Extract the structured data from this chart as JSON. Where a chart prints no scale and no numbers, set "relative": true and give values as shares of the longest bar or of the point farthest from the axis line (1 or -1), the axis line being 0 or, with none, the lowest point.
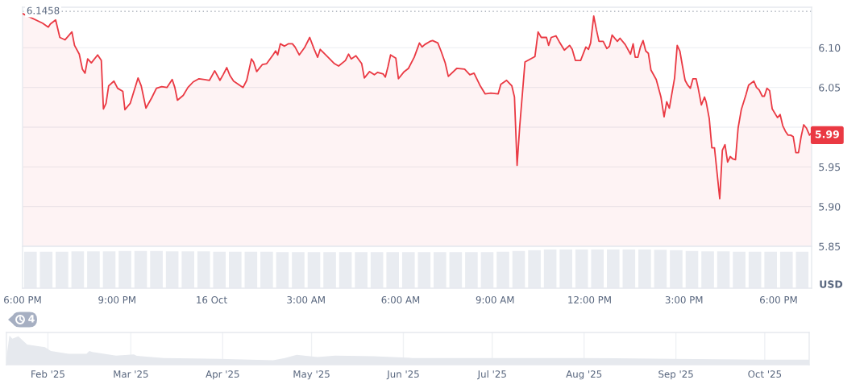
{
  "chart_data": [
    {
      "type": "area",
      "x": [
        "2025-10-15T18:00",
        "2025-10-15T18:38",
        "2025-10-15T18:49",
        "2025-10-15T18:53",
        "2025-10-15T19:03",
        "2025-10-15T19:11",
        "2025-10-15T19:21",
        "2025-10-15T19:34",
        "2025-10-15T19:39",
        "2025-10-15T19:48",
        "2025-10-15T19:54",
        "2025-10-15T19:59",
        "2025-10-15T20:04",
        "2025-10-15T20:11",
        "2025-10-15T20:23",
        "2025-10-15T20:30",
        "2025-10-15T20:34",
        "2025-10-15T20:39",
        "2025-10-15T20:44",
        "2025-10-15T20:54",
        "2025-10-15T21:01",
        "2025-10-15T21:11",
        "2025-10-15T21:15",
        "2025-10-15T21:25",
        "2025-10-15T21:40",
        "2025-10-15T21:46",
        "2025-10-15T21:55",
        "2025-10-15T22:06",
        "2025-10-15T22:15",
        "2025-10-15T22:25",
        "2025-10-15T22:35",
        "2025-10-15T22:45",
        "2025-10-15T22:50",
        "2025-10-15T22:55",
        "2025-10-15T23:06",
        "2025-10-15T23:15",
        "2025-10-15T23:25",
        "2025-10-15T23:36",
        "2025-10-15T23:56",
        "2025-10-16T00:06",
        "2025-10-16T00:16",
        "2025-10-16T00:22",
        "2025-10-16T00:29",
        "2025-10-16T00:35",
        "2025-10-16T00:42",
        "2025-10-16T01:00",
        "2025-10-16T01:07",
        "2025-10-16T01:16",
        "2025-10-16T01:20",
        "2025-10-16T01:26",
        "2025-10-16T01:37",
        "2025-10-16T01:45",
        "2025-10-16T01:57",
        "2025-10-16T02:02",
        "2025-10-16T02:06",
        "2025-10-16T02:11",
        "2025-10-16T02:19",
        "2025-10-16T02:26",
        "2025-10-16T02:34",
        "2025-10-16T02:39",
        "2025-10-16T02:47",
        "2025-10-16T02:57",
        "2025-10-16T03:07",
        "2025-10-16T03:15",
        "2025-10-16T03:22",
        "2025-10-16T03:27",
        "2025-10-16T03:42",
        "2025-10-16T03:54",
        "2025-10-16T04:02",
        "2025-10-16T04:15",
        "2025-10-16T04:21",
        "2025-10-16T04:26",
        "2025-10-16T04:35",
        "2025-10-16T04:46",
        "2025-10-16T04:51",
        "2025-10-16T05:01",
        "2025-10-16T05:10",
        "2025-10-16T05:16",
        "2025-10-16T05:27",
        "2025-10-16T05:31",
        "2025-10-16T05:36",
        "2025-10-16T05:41",
        "2025-10-16T05:51",
        "2025-10-16T05:56",
        "2025-10-16T06:07",
        "2025-10-16T06:15",
        "2025-10-16T06:26",
        "2025-10-16T06:36",
        "2025-10-16T06:41",
        "2025-10-16T06:46",
        "2025-10-16T06:56",
        "2025-10-16T07:01",
        "2025-10-16T07:11",
        "2025-10-16T07:17",
        "2025-10-16T07:25",
        "2025-10-16T07:31",
        "2025-10-16T07:47",
        "2025-10-16T08:02",
        "2025-10-16T08:12",
        "2025-10-16T08:20",
        "2025-10-16T08:31",
        "2025-10-16T08:41",
        "2025-10-16T08:52",
        "2025-10-16T09:06",
        "2025-10-16T09:11",
        "2025-10-16T09:22",
        "2025-10-16T09:32",
        "2025-10-16T09:37",
        "2025-10-16T09:42",
        "2025-10-16T09:47",
        "2025-10-16T09:57",
        "2025-10-16T10:16",
        "2025-10-16T10:22",
        "2025-10-16T10:28",
        "2025-10-16T10:38",
        "2025-10-16T10:42",
        "2025-10-16T10:47",
        "2025-10-16T10:56",
        "2025-10-16T11:02",
        "2025-10-16T11:12",
        "2025-10-16T11:22",
        "2025-10-16T11:27",
        "2025-10-16T11:33",
        "2025-10-16T11:43",
        "2025-10-16T11:53",
        "2025-10-16T11:58",
        "2025-10-16T12:02",
        "2025-10-16T12:08",
        "2025-10-16T12:13",
        "2025-10-16T12:18",
        "2025-10-16T12:26",
        "2025-10-16T12:33",
        "2025-10-16T12:38",
        "2025-10-16T12:43",
        "2025-10-16T12:53",
        "2025-10-16T12:58",
        "2025-10-16T13:08",
        "2025-10-16T13:18",
        "2025-10-16T13:23",
        "2025-10-16T13:27",
        "2025-10-16T13:32",
        "2025-10-16T13:37",
        "2025-10-16T13:42",
        "2025-10-16T13:47",
        "2025-10-16T13:52",
        "2025-10-16T13:57",
        "2025-10-16T14:07",
        "2025-10-16T14:16",
        "2025-10-16T14:22",
        "2025-10-16T14:27",
        "2025-10-16T14:32",
        "2025-10-16T14:42",
        "2025-10-16T14:47",
        "2025-10-16T14:52",
        "2025-10-16T14:57",
        "2025-10-16T15:02",
        "2025-10-16T15:07",
        "2025-10-16T15:12",
        "2025-10-16T15:17",
        "2025-10-16T15:23",
        "2025-10-16T15:27",
        "2025-10-16T15:33",
        "2025-10-16T15:39",
        "2025-10-16T15:42",
        "2025-10-16T15:48",
        "2025-10-16T15:53",
        "2025-10-16T15:58",
        "2025-10-16T16:08",
        "2025-10-16T16:13",
        "2025-10-16T16:18",
        "2025-10-16T16:23",
        "2025-10-16T16:28",
        "2025-10-16T16:33",
        "2025-10-16T16:38",
        "2025-10-16T16:43",
        "2025-10-16T16:49",
        "2025-10-16T16:58",
        "2025-10-16T17:03",
        "2025-10-16T17:13",
        "2025-10-16T17:18",
        "2025-10-16T17:23",
        "2025-10-16T17:29",
        "2025-10-16T17:33",
        "2025-10-16T17:38",
        "2025-10-16T17:43",
        "2025-10-16T17:48",
        "2025-10-16T17:58",
        "2025-10-16T18:03",
        "2025-10-16T18:08",
        "2025-10-16T18:13",
        "2025-10-16T18:18",
        "2025-10-16T18:23",
        "2025-10-16T18:28",
        "2025-10-16T18:33",
        "2025-10-16T18:38",
        "2025-10-16T18:43",
        "2025-10-16T18:48",
        "2025-10-16T18:53",
        "2025-10-16T18:59",
        "2025-10-16T19:03"
      ],
      "series": [
        {
          "color": "#ea3943",
          "values": [
            6.143,
            6.131,
            6.126,
            6.13,
            6.135,
            6.113,
            6.11,
            6.12,
            6.103,
            6.092,
            6.073,
            6.068,
            6.086,
            6.081,
            6.091,
            6.084,
            6.023,
            6.03,
            6.052,
            6.058,
            6.049,
            6.045,
            6.022,
            6.03,
            6.062,
            6.052,
            6.024,
            6.037,
            6.049,
            6.051,
            6.05,
            6.06,
            6.05,
            6.034,
            6.04,
            6.05,
            6.057,
            6.061,
            6.059,
            6.071,
            6.059,
            6.066,
            6.075,
            6.065,
            6.058,
            6.05,
            6.059,
            6.086,
            6.082,
            6.07,
            6.079,
            6.08,
            6.091,
            6.096,
            6.091,
            6.105,
            6.102,
            6.105,
            6.105,
            6.101,
            6.091,
            6.1,
            6.113,
            6.099,
            6.088,
            6.098,
            6.088,
            6.08,
            6.077,
            6.084,
            6.092,
            6.086,
            6.09,
            6.08,
            6.062,
            6.07,
            6.066,
            6.069,
            6.067,
            6.063,
            6.076,
            6.091,
            6.087,
            6.061,
            6.07,
            6.074,
            6.088,
            6.106,
            6.101,
            6.104,
            6.108,
            6.109,
            6.106,
            6.096,
            6.081,
            6.064,
            6.074,
            6.073,
            6.066,
            6.068,
            6.053,
            6.042,
            6.043,
            6.042,
            6.054,
            6.059,
            6.052,
            6.038,
            5.952,
            6.001,
            6.082,
            6.089,
            6.12,
            6.113,
            6.113,
            6.103,
            6.113,
            6.115,
            6.108,
            6.097,
            6.103,
            6.098,
            6.084,
            6.084,
            6.101,
            6.098,
            6.106,
            6.14,
            6.123,
            6.108,
            6.108,
            6.099,
            6.102,
            6.116,
            6.108,
            6.112,
            6.104,
            6.092,
            6.105,
            6.088,
            6.088,
            6.101,
            6.109,
            6.096,
            6.093,
            6.072,
            6.06,
            6.038,
            6.013,
            6.032,
            6.024,
            6.062,
            6.103,
            6.096,
            6.077,
            6.059,
            6.053,
            6.049,
            6.061,
            6.061,
            6.049,
            6.028,
            6.038,
            6.032,
            6.011,
            5.974,
            5.974,
            5.91,
            5.971,
            5.978,
            5.956,
            5.963,
            5.96,
            5.959,
            5.999,
            6.022,
            6.041,
            6.053,
            6.058,
            6.05,
            6.047,
            6.039,
            6.039,
            6.049,
            6.046,
            6.023,
            6.012,
            6.016,
            6.002,
            5.995,
            5.99,
            5.99,
            5.988,
            5.968,
            5.968,
            5.988,
            6.003,
            5.999,
            5.99,
            5.993
          ]
        }
      ],
      "xlim": [
        "2025-10-15T18:00",
        "2025-10-16T19:03"
      ],
      "ylim": [
        5.85,
        6.151
      ],
      "yticks": [
        5.85,
        {
          "value": 5.9,
          "label": "5.90"
        },
        5.95,
        {
          "value": 6.0,
          "label": null
        },
        6.05,
        {
          "value": 6.1,
          "label": "6.10"
        }
      ],
      "ylabel": "USD",
      "grid": "y",
      "tick_labels": "y",
      "ref_lines": [
        {
          "axis": "y",
          "value": 6.1458,
          "label": "6.1458",
          "color": "#9aa1ad",
          "line_style": "dotted"
        }
      ],
      "annotations": [
        {
          "text": "5.99",
          "x": "2025-10-16T19:03",
          "y": 5.99
        }
      ]
    },
    {
      "type": "bar",
      "relative": true,
      "x": [
        "2025-10-15T18:15",
        "2025-10-15T18:45",
        "2025-10-15T19:15",
        "2025-10-15T19:45",
        "2025-10-15T20:15",
        "2025-10-15T20:45",
        "2025-10-15T21:15",
        "2025-10-15T21:45",
        "2025-10-15T22:15",
        "2025-10-15T22:45",
        "2025-10-15T23:15",
        "2025-10-15T23:45",
        "2025-10-16T00:15",
        "2025-10-16T00:45",
        "2025-10-16T01:15",
        "2025-10-16T01:45",
        "2025-10-16T02:15",
        "2025-10-16T02:45",
        "2025-10-16T03:15",
        "2025-10-16T03:45",
        "2025-10-16T04:15",
        "2025-10-16T04:45",
        "2025-10-16T05:15",
        "2025-10-16T05:45",
        "2025-10-16T06:15",
        "2025-10-16T06:45",
        "2025-10-16T07:15",
        "2025-10-16T07:45",
        "2025-10-16T08:15",
        "2025-10-16T08:45",
        "2025-10-16T09:15",
        "2025-10-16T09:45",
        "2025-10-16T10:15",
        "2025-10-16T10:45",
        "2025-10-16T11:15",
        "2025-10-16T11:45",
        "2025-10-16T12:15",
        "2025-10-16T12:45",
        "2025-10-16T13:15",
        "2025-10-16T13:45",
        "2025-10-16T14:15",
        "2025-10-16T14:45",
        "2025-10-16T15:15",
        "2025-10-16T15:45",
        "2025-10-16T16:15",
        "2025-10-16T16:45",
        "2025-10-16T17:15",
        "2025-10-16T17:45",
        "2025-10-16T18:15",
        "2025-10-16T18:45"
      ],
      "series": [
        {
          "color": "#e9ecf1",
          "values": [
            0.94,
            0.94,
            0.94,
            0.95,
            0.95,
            0.95,
            0.96,
            0.96,
            0.96,
            0.95,
            0.95,
            0.95,
            0.94,
            0.94,
            0.94,
            0.94,
            0.93,
            0.93,
            0.93,
            0.93,
            0.93,
            0.93,
            0.93,
            0.93,
            0.93,
            0.93,
            0.93,
            0.93,
            0.93,
            0.93,
            0.94,
            0.96,
            0.98,
            1.0,
            1.0,
            1.0,
            1.0,
            1.0,
            1.0,
            1.0,
            0.99,
            0.98,
            0.96,
            0.95,
            0.95,
            0.94,
            0.94,
            0.94,
            0.94,
            0.94
          ]
        }
      ],
      "xlim": [
        "2025-10-15T18:00",
        "2025-10-16T19:03"
      ],
      "xticks": [
        {
          "value": "2025-10-15T18:00",
          "label": "6:00 PM"
        },
        {
          "value": "2025-10-15T21:00",
          "label": "9:00 PM"
        },
        {
          "value": "2025-10-16T00:00",
          "label": "16 Oct"
        },
        {
          "value": "2025-10-16T03:00",
          "label": "3:00 AM"
        },
        {
          "value": "2025-10-16T06:00",
          "label": "6:00 AM"
        },
        {
          "value": "2025-10-16T09:00",
          "label": "9:00 AM"
        },
        {
          "value": "2025-10-16T12:00",
          "label": "12:00 PM"
        },
        {
          "value": "2025-10-16T15:00",
          "label": "3:00 PM"
        },
        {
          "value": "2025-10-16T18:00",
          "label": "6:00 PM"
        }
      ],
      "tick_labels": "x",
      "annotations": [
        "4"
      ]
    },
    {
      "type": "area",
      "relative": true,
      "x": [
        "2025-01-18",
        "2025-01-19",
        "2025-01-20",
        "2025-01-22",
        "2025-01-25",
        "2025-01-31",
        "2025-02-02",
        "2025-02-08",
        "2025-02-14",
        "2025-02-15",
        "2025-02-16",
        "2025-02-24",
        "2025-03-02",
        "2025-03-03",
        "2025-03-12",
        "2025-03-31",
        "2025-04-18",
        "2025-04-22",
        "2025-04-26",
        "2025-05-03",
        "2025-05-09",
        "2025-05-22",
        "2025-06-04",
        "2025-06-30",
        "2025-07-31",
        "2025-08-31",
        "2025-09-30",
        "2025-10-16"
      ],
      "series": [
        {
          "color": "#e6e9ee",
          "values": [
            0.23,
            1.0,
            0.89,
            0.97,
            0.69,
            0.6,
            0.47,
            0.37,
            0.37,
            0.47,
            0.43,
            0.31,
            0.35,
            0.3,
            0.23,
            0.2,
            0.15,
            0.23,
            0.34,
            0.26,
            0.31,
            0.29,
            0.23,
            0.23,
            0.23,
            0.2,
            0.17,
            0.17
          ]
        }
      ],
      "xlim": [
        "2025-01-18",
        "2025-10-16"
      ],
      "xticks": [
        {
          "value": "2025-02-01",
          "label": "Feb '25"
        },
        {
          "value": "2025-03-01",
          "label": "Mar '25"
        },
        {
          "value": "2025-04-01",
          "label": "Apr '25"
        },
        {
          "value": "2025-05-01",
          "label": "May '25"
        },
        {
          "value": "2025-06-01",
          "label": "Jun '25"
        },
        {
          "value": "2025-07-01",
          "label": "Jul '25"
        },
        {
          "value": "2025-08-01",
          "label": "Aug '25"
        },
        {
          "value": "2025-09-01",
          "label": "Sep '25"
        },
        {
          "value": "2025-10-01",
          "label": "Oct '25"
        }
      ],
      "grid": "x",
      "tick_labels": "x"
    }
  ]
}
